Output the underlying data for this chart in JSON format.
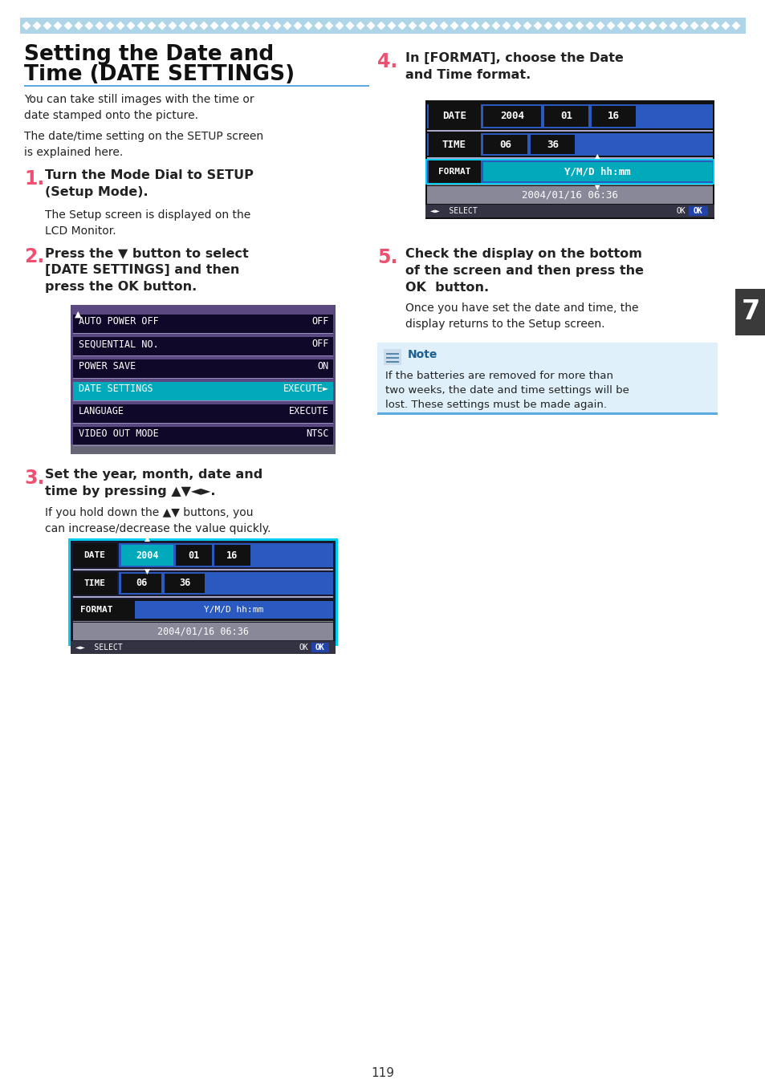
{
  "bg_color": "#ffffff",
  "top_bar_color": "#aed6e8",
  "diamond_color": "#ffffff",
  "title_color": "#111111",
  "title_underline_color": "#5aaadd",
  "body_text_color": "#222222",
  "number_color": "#f05070",
  "page_num": "119",
  "right_tab_color": "#3a3a3a",
  "right_tab_text": "7",
  "purple_menu_bg": "#5a4880",
  "menu_row_bg": "#100828",
  "cyan_highlight": "#00aabb",
  "menu_rows": [
    {
      "label": "AUTO POWER OFF",
      "value": "OFF",
      "highlighted": false
    },
    {
      "label": "SEQUENTIAL NO.",
      "value": "OFF",
      "highlighted": false
    },
    {
      "label": "POWER SAVE",
      "value": "ON",
      "highlighted": false
    },
    {
      "label": "DATE SETTINGS",
      "value": "EXECUTE►",
      "highlighted": true
    },
    {
      "label": "LANGUAGE",
      "value": "EXECUTE",
      "highlighted": false
    },
    {
      "label": "VIDEO OUT MODE",
      "value": "NTSC",
      "highlighted": false
    }
  ],
  "note_bg": "#e0f0fa",
  "note_top_color": "#5aaadd",
  "note_text": "If the batteries are removed for more than\ntwo weeks, the date and time settings will be\nlost. These settings must be made again.",
  "date_screen_outer": "#111111",
  "date_screen_dark": "#1a1a2e",
  "date_label_bg": "#111111",
  "date_blue": "#2a5abf",
  "date_cyan": "#00aabb",
  "date_green_row": "#2a7a3a",
  "date_gray_preview": "#888899",
  "date_bottom_bar": "#222233",
  "step3_screen_border": "#00ccee"
}
